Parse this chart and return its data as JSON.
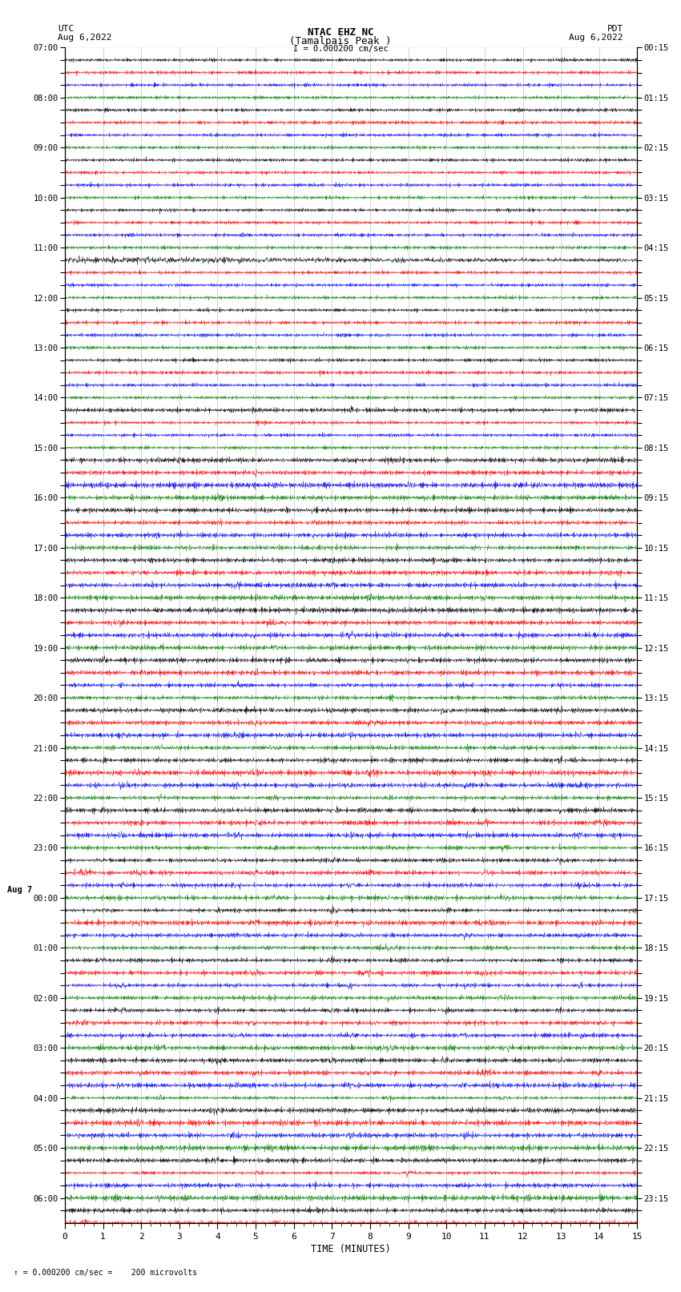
{
  "title_line1": "NTAC EHZ NC",
  "title_line2": "(Tamalpais Peak )",
  "title_line3": "I = 0.000200 cm/sec",
  "left_label": "UTC",
  "left_date": "Aug 6,2022",
  "right_label": "PDT",
  "right_date": "Aug 6,2022",
  "xlabel": "TIME (MINUTES)",
  "bottom_note": "= 0.000200 cm/sec =    200 microvolts",
  "x_ticks": [
    0,
    1,
    2,
    3,
    4,
    5,
    6,
    7,
    8,
    9,
    10,
    11,
    12,
    13,
    14,
    15
  ],
  "row_labels_left": [
    "07:00",
    "",
    "",
    "",
    "08:00",
    "",
    "",
    "",
    "09:00",
    "",
    "",
    "",
    "10:00",
    "",
    "",
    "",
    "11:00",
    "",
    "",
    "",
    "12:00",
    "",
    "",
    "",
    "13:00",
    "",
    "",
    "",
    "14:00",
    "",
    "",
    "",
    "15:00",
    "",
    "",
    "",
    "16:00",
    "",
    "",
    "",
    "17:00",
    "",
    "",
    "",
    "18:00",
    "",
    "",
    "",
    "19:00",
    "",
    "",
    "",
    "20:00",
    "",
    "",
    "",
    "21:00",
    "",
    "",
    "",
    "22:00",
    "",
    "",
    "",
    "23:00",
    "",
    "",
    "",
    "00:00",
    "",
    "",
    "",
    "01:00",
    "",
    "",
    "",
    "02:00",
    "",
    "",
    "",
    "03:00",
    "",
    "",
    "",
    "04:00",
    "",
    "",
    "",
    "05:00",
    "",
    "",
    "",
    "06:00",
    ""
  ],
  "row_labels_right": [
    "00:15",
    "",
    "",
    "",
    "01:15",
    "",
    "",
    "",
    "02:15",
    "",
    "",
    "",
    "03:15",
    "",
    "",
    "",
    "04:15",
    "",
    "",
    "",
    "05:15",
    "",
    "",
    "",
    "06:15",
    "",
    "",
    "",
    "07:15",
    "",
    "",
    "",
    "08:15",
    "",
    "",
    "",
    "09:15",
    "",
    "",
    "",
    "10:15",
    "",
    "",
    "",
    "11:15",
    "",
    "",
    "",
    "12:15",
    "",
    "",
    "",
    "13:15",
    "",
    "",
    "",
    "14:15",
    "",
    "",
    "",
    "15:15",
    "",
    "",
    "",
    "16:15",
    "",
    "",
    "",
    "17:15",
    "",
    "",
    "",
    "18:15",
    "",
    "",
    "",
    "19:15",
    "",
    "",
    "",
    "20:15",
    "",
    "",
    "",
    "21:15",
    "",
    "",
    "",
    "22:15",
    "",
    "",
    "",
    "23:15",
    ""
  ],
  "aug7_row": 68,
  "trace_colors": [
    "black",
    "red",
    "blue",
    "green"
  ],
  "n_traces": 94,
  "background_color": "white",
  "grid_color": "#666666",
  "base_noise": 0.025,
  "active_noise": 0.08
}
